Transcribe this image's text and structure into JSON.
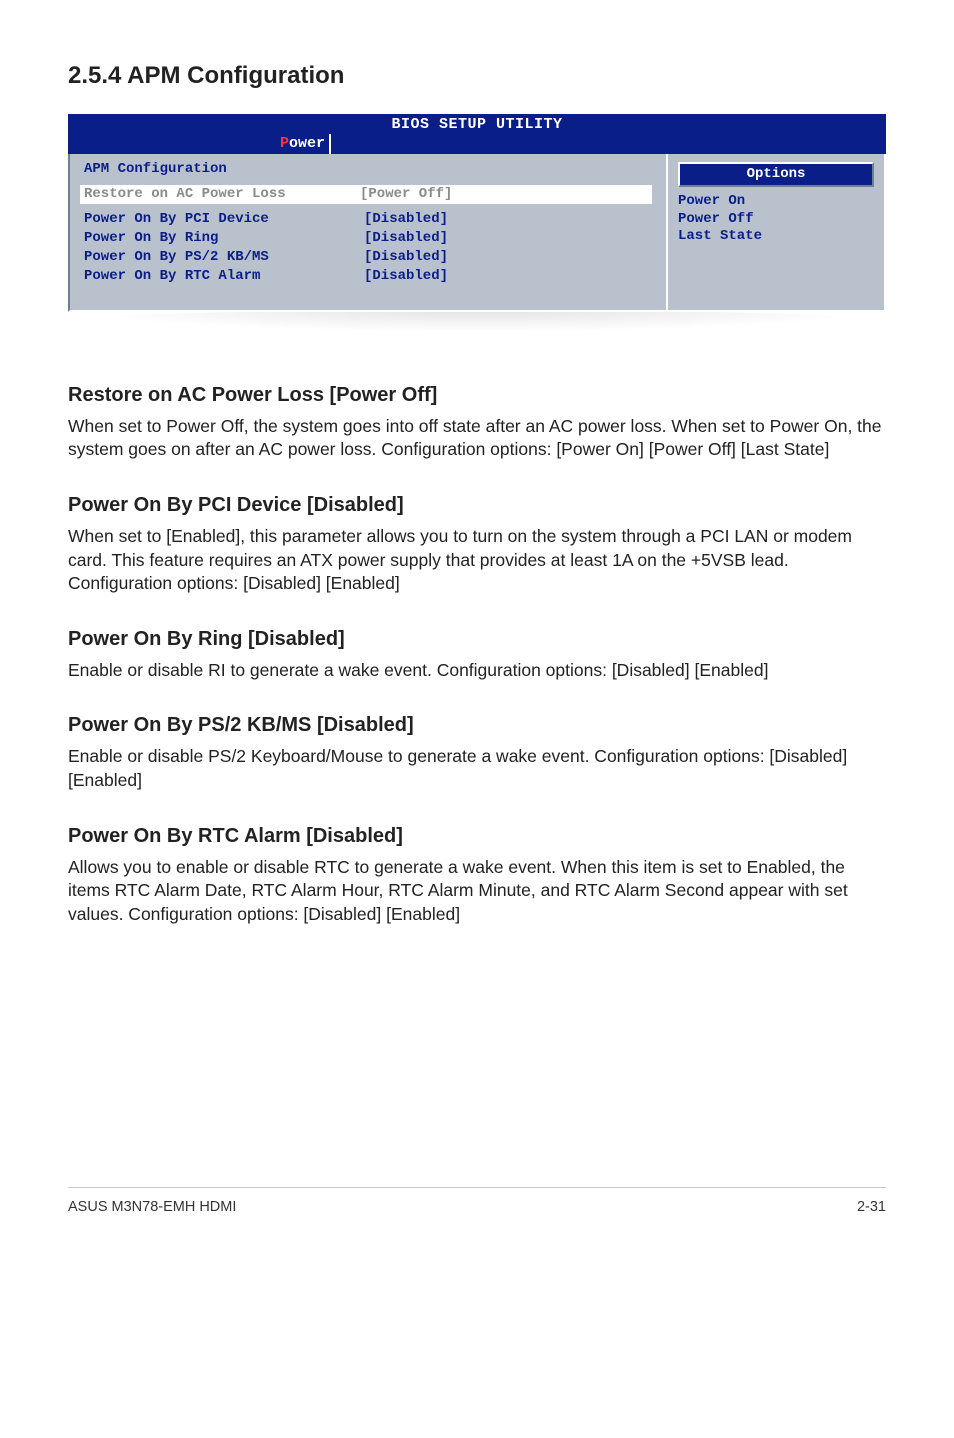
{
  "page_heading": "2.5.4      APM Configuration",
  "bios": {
    "colors": {
      "header_bg": "#0a1e8a",
      "header_fg": "#ffffff",
      "accent_letter": "#ff3333",
      "panel_bg": "#b9c1cc",
      "item_fg": "#0a1e8a",
      "selected_bg": "#ffffff",
      "selected_fg": "#8a8a8a"
    },
    "header_title": "BIOS SETUP UTILITY",
    "tab_first_letter": "P",
    "tab_rest": "ower",
    "left": {
      "subheading": "APM Configuration",
      "selected_row": {
        "label": "Restore on AC Power Loss",
        "value": "[Power Off]"
      },
      "rows": [
        {
          "label": "Power On By PCI Device",
          "value": "[Disabled]"
        },
        {
          "label": "Power On By Ring",
          "value": "[Disabled]"
        },
        {
          "label": "Power On By PS/2 KB/MS",
          "value": "[Disabled]"
        },
        {
          "label": "Power On By RTC Alarm",
          "value": "[Disabled]"
        }
      ]
    },
    "right": {
      "pill_label": "Options",
      "options": [
        "Power On",
        "Power Off",
        "Last State"
      ]
    }
  },
  "sections": [
    {
      "heading": "Restore on AC Power Loss [Power Off]",
      "body": "When set to Power Off, the system goes into off state after an AC power loss. When set to Power On, the system goes on after an AC power loss. Configuration options: [Power On] [Power Off] [Last State]"
    },
    {
      "heading": "Power On By PCI Device [Disabled]",
      "body": "When set to [Enabled], this parameter allows you to turn on the system through a PCI LAN or modem card. This feature requires an ATX power supply that provides at least 1A on the +5VSB lead. Configuration options: [Disabled] [Enabled]"
    },
    {
      "heading": "Power On By Ring [Disabled]",
      "body": "Enable or disable RI to generate a wake event. Configuration options: [Disabled] [Enabled]"
    },
    {
      "heading": "Power On By PS/2 KB/MS [Disabled]",
      "body": "Enable or disable PS/2 Keyboard/Mouse to generate a wake event. Configuration options: [Disabled] [Enabled]"
    },
    {
      "heading": "Power On By RTC Alarm [Disabled]",
      "body": "Allows you to enable or disable RTC to generate a wake event. When this item is set to Enabled, the items RTC Alarm Date, RTC Alarm Hour, RTC Alarm Minute, and RTC Alarm Second appear with set values. Configuration options: [Disabled] [Enabled]"
    }
  ],
  "footer": {
    "left": "ASUS M3N78-EMH HDMI",
    "right": "2-31"
  }
}
